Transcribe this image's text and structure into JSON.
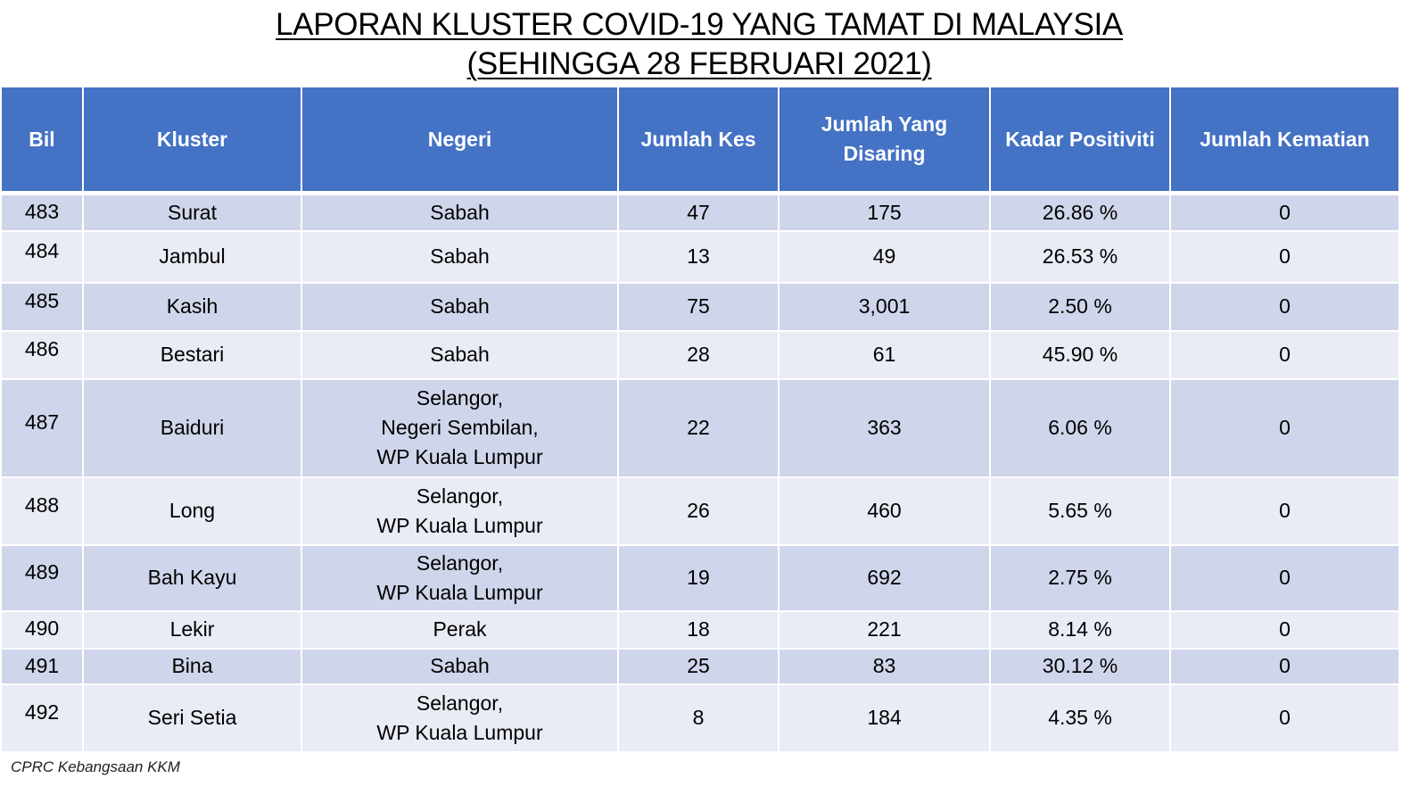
{
  "title": {
    "line1": "LAPORAN KLUSTER COVID-19 YANG TAMAT DI MALAYSIA",
    "line2": "(SEHINGGA 28 FEBRUARI 2021)"
  },
  "table": {
    "headers": [
      "Bil",
      "Kluster",
      "Negeri",
      "Jumlah Kes",
      "Jumlah Yang Disaring",
      "Kadar Positiviti",
      "Jumlah Kematian"
    ],
    "rows": [
      {
        "bil": "483",
        "kluster": "Surat",
        "negeri": [
          "Sabah"
        ],
        "kes": "47",
        "disaring": "175",
        "positiviti": "26.86 %",
        "kematian": "0"
      },
      {
        "bil": "484",
        "kluster": "Jambul",
        "negeri": [
          "Sabah"
        ],
        "kes": "13",
        "disaring": "49",
        "positiviti": "26.53 %",
        "kematian": "0"
      },
      {
        "bil": "485",
        "kluster": "Kasih",
        "negeri": [
          "Sabah"
        ],
        "kes": "75",
        "disaring": "3,001",
        "positiviti": "2.50 %",
        "kematian": "0"
      },
      {
        "bil": "486",
        "kluster": "Bestari",
        "negeri": [
          "Sabah"
        ],
        "kes": "28",
        "disaring": "61",
        "positiviti": "45.90 %",
        "kematian": "0"
      },
      {
        "bil": "487",
        "kluster": "Baiduri",
        "negeri": [
          "Selangor,",
          "Negeri Sembilan,",
          "WP Kuala Lumpur"
        ],
        "kes": "22",
        "disaring": "363",
        "positiviti": "6.06 %",
        "kematian": "0"
      },
      {
        "bil": "488",
        "kluster": "Long",
        "negeri": [
          "Selangor,",
          "WP Kuala Lumpur"
        ],
        "kes": "26",
        "disaring": "460",
        "positiviti": "5.65 %",
        "kematian": "0"
      },
      {
        "bil": "489",
        "kluster": "Bah Kayu",
        "negeri": [
          "Selangor,",
          "WP Kuala Lumpur"
        ],
        "kes": "19",
        "disaring": "692",
        "positiviti": "2.75 %",
        "kematian": "0"
      },
      {
        "bil": "490",
        "kluster": "Lekir",
        "negeri": [
          "Perak"
        ],
        "kes": "18",
        "disaring": "221",
        "positiviti": "8.14 %",
        "kematian": "0"
      },
      {
        "bil": "491",
        "kluster": "Bina",
        "negeri": [
          "Sabah"
        ],
        "kes": "25",
        "disaring": "83",
        "positiviti": "30.12 %",
        "kematian": "0"
      },
      {
        "bil": "492",
        "kluster": "Seri Setia",
        "negeri": [
          "Selangor,",
          "WP Kuala Lumpur"
        ],
        "kes": "8",
        "disaring": "184",
        "positiviti": "4.35 %",
        "kematian": "0"
      }
    ]
  },
  "footer": "CPRC Kebangsaan KKM",
  "colors": {
    "header_bg": "#4472c4",
    "row_dark": "#cfd5ea",
    "row_light": "#e9ebf5"
  }
}
